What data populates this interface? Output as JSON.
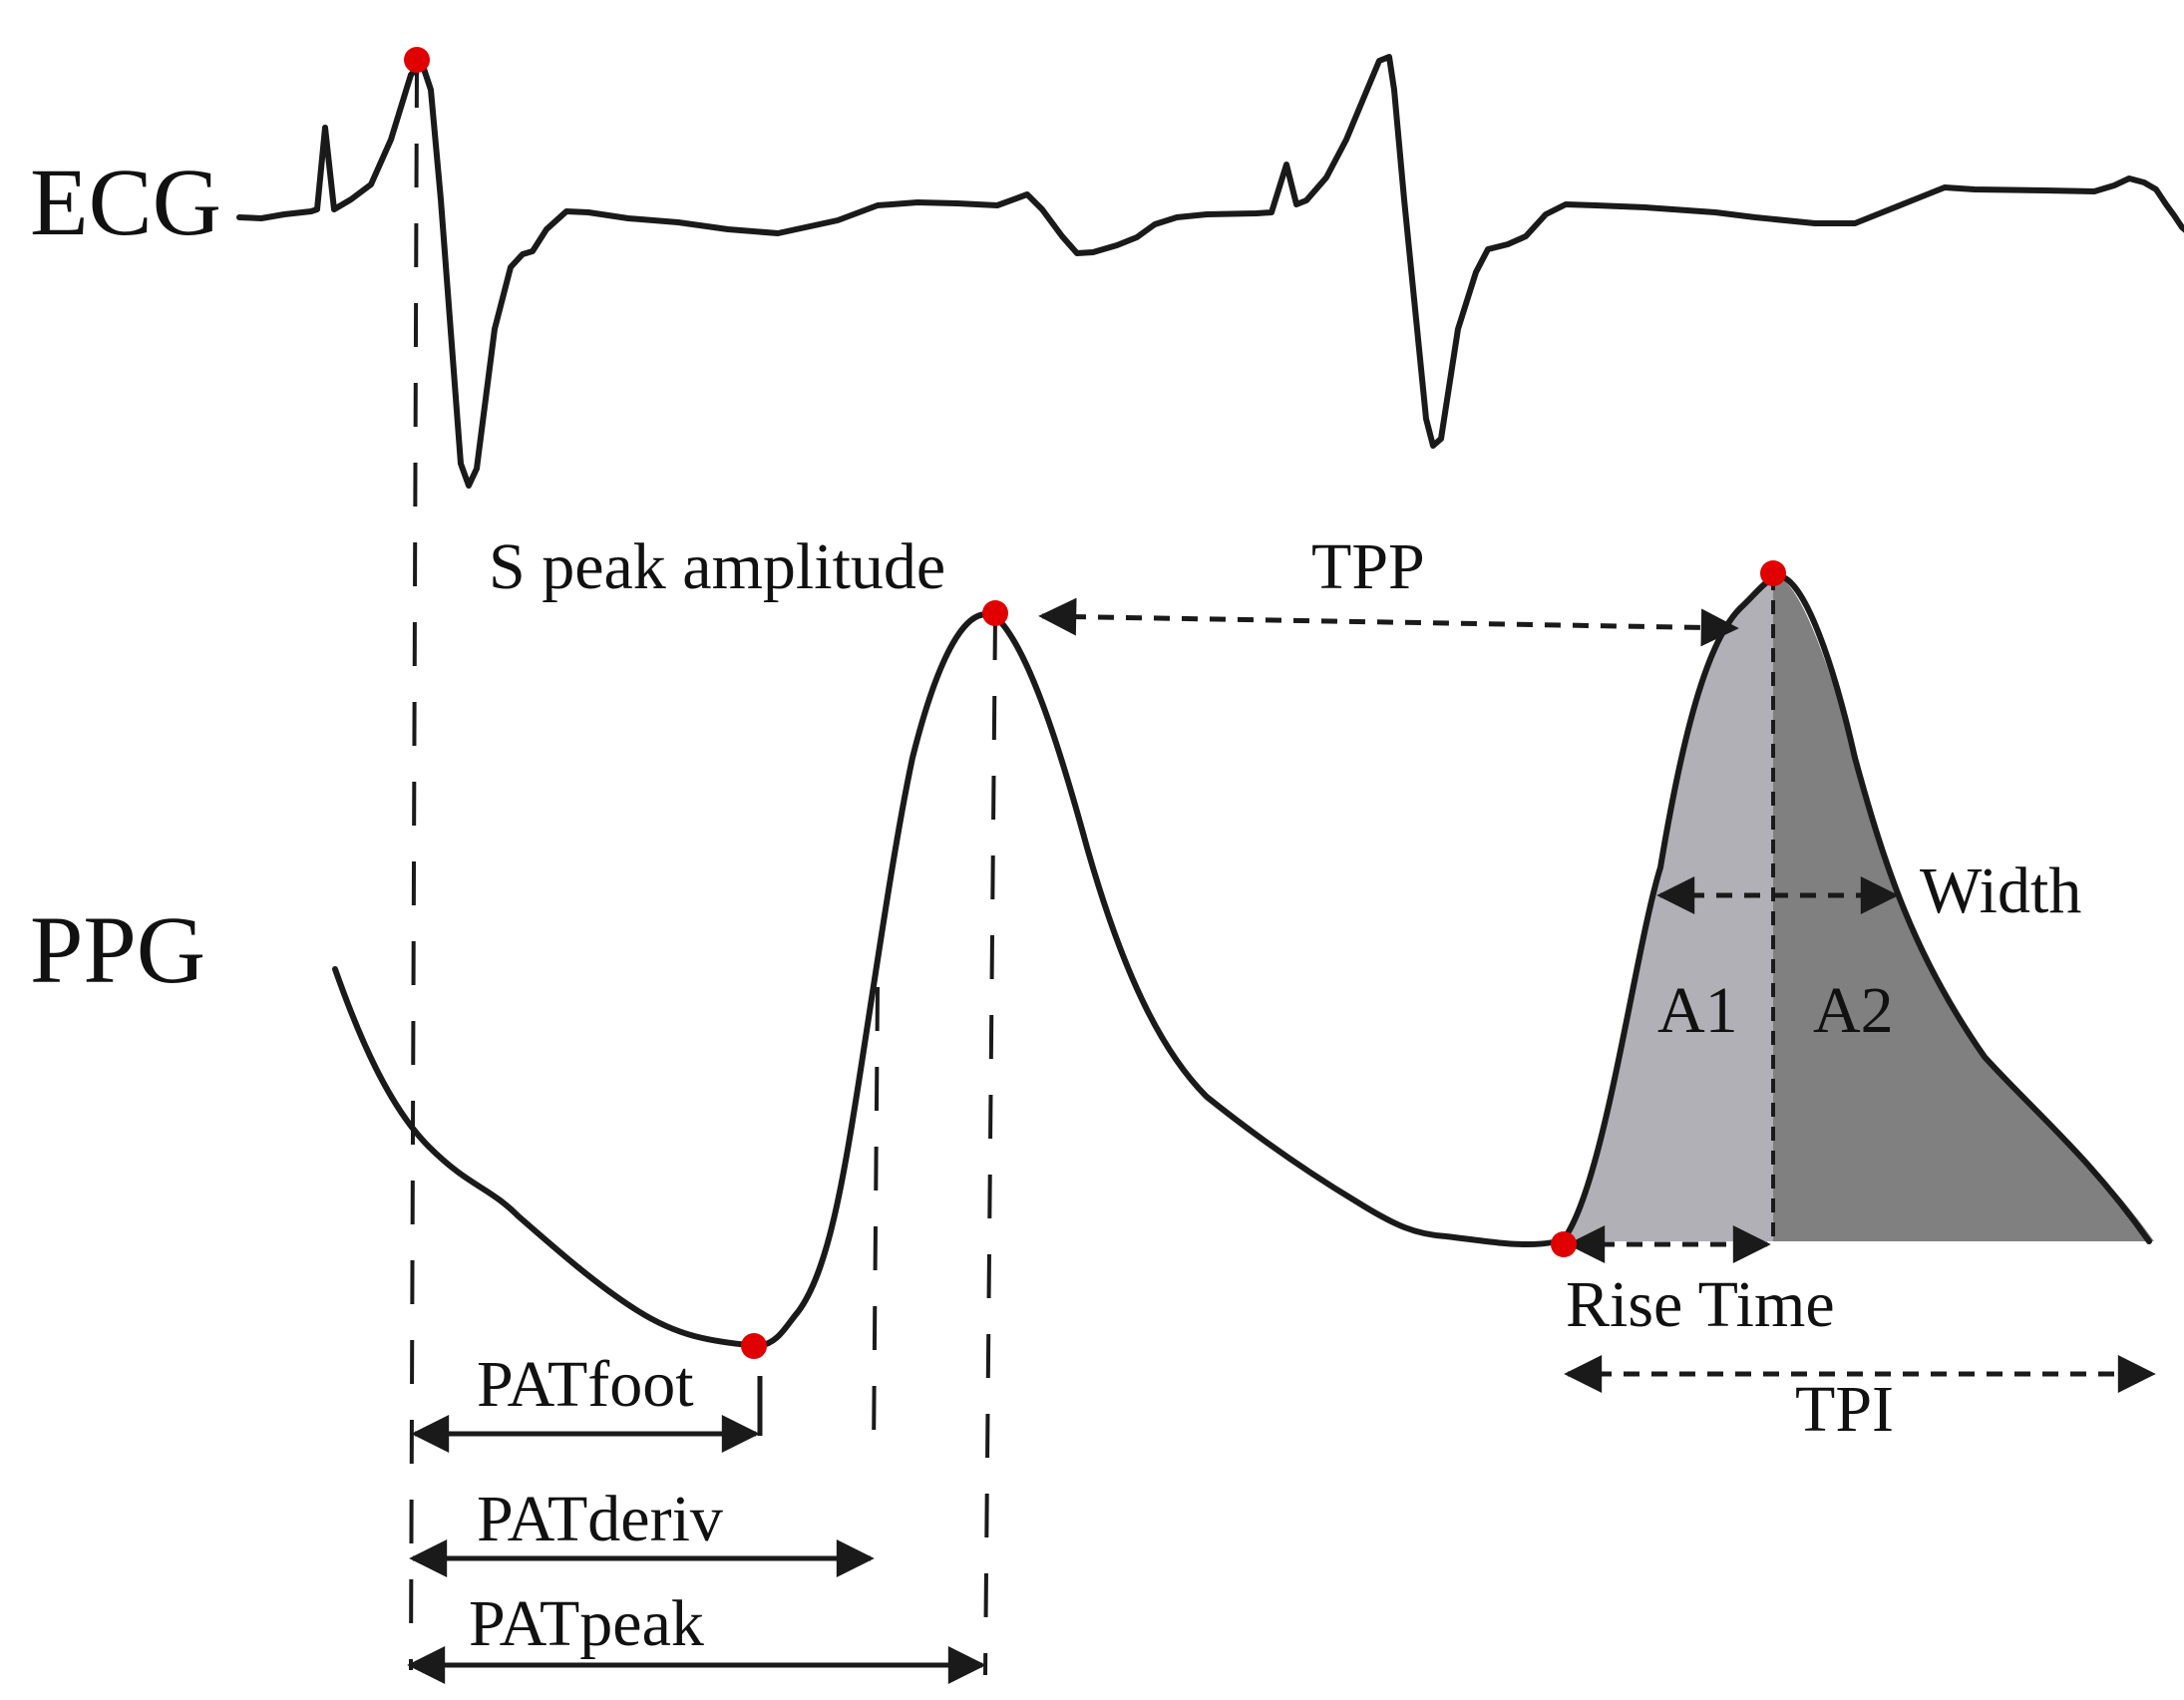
{
  "labels": {
    "ecg": "ECG",
    "ppg": "PPG",
    "s_peak_amplitude": "S peak amplitude",
    "tpp": "TPP",
    "width": "Width",
    "a1": "A1",
    "a2": "A2",
    "rise_time": "Rise Time",
    "tpi": "TPI",
    "pat_foot": "PATfoot",
    "pat_deriv": "PATderiv",
    "pat_peak": "PATpeak"
  },
  "colors": {
    "trace": "#1a1a1a",
    "marker": "#e00000",
    "area_a1": "#b0b0b6",
    "area_a2": "#808080"
  }
}
